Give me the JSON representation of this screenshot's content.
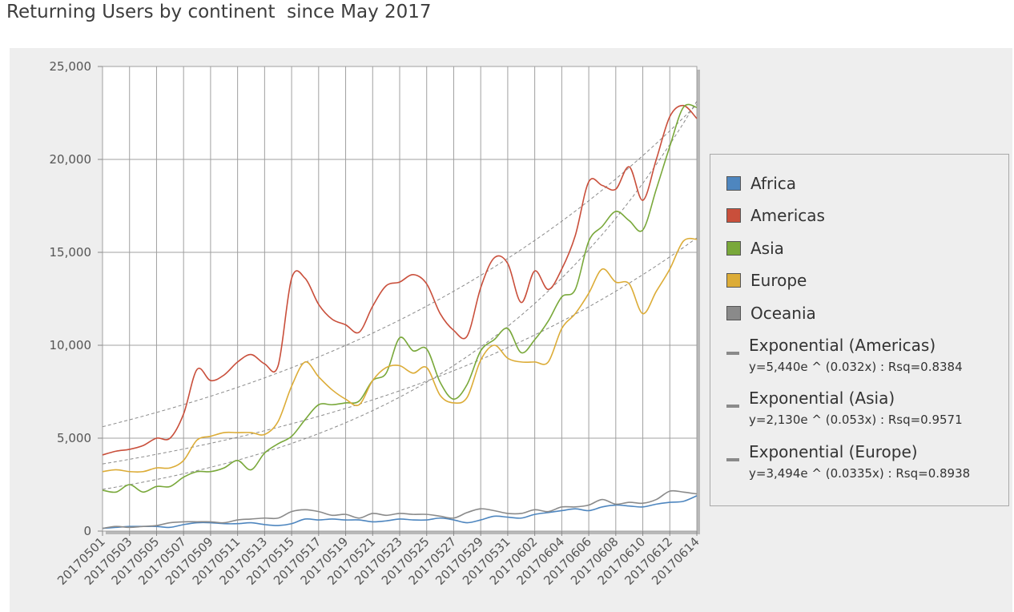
{
  "page": {
    "title": "Returning Users by continent  since May 2017"
  },
  "chart_data": {
    "type": "line",
    "title": "Returning Users by continent  since May 2017",
    "xlabel": "",
    "ylabel": "",
    "ylim": [
      0,
      25000
    ],
    "yticks": [
      0,
      5000,
      10000,
      15000,
      20000,
      25000
    ],
    "ytick_labels": [
      "0",
      "5,000",
      "10,000",
      "15,000",
      "20,000",
      "25,000"
    ],
    "grid": true,
    "legend_position": "right",
    "x": [
      "20170501",
      "20170502",
      "20170503",
      "20170504",
      "20170505",
      "20170506",
      "20170507",
      "20170508",
      "20170509",
      "20170510",
      "20170511",
      "20170512",
      "20170513",
      "20170514",
      "20170515",
      "20170516",
      "20170517",
      "20170518",
      "20170519",
      "20170520",
      "20170521",
      "20170522",
      "20170523",
      "20170524",
      "20170525",
      "20170526",
      "20170527",
      "20170528",
      "20170529",
      "20170530",
      "20170531",
      "20170601",
      "20170602",
      "20170603",
      "20170604",
      "20170605",
      "20170606",
      "20170607",
      "20170608",
      "20170609",
      "20170610",
      "20170611",
      "20170612",
      "20170613",
      "20170614"
    ],
    "xtick_labels": [
      "20170501",
      "20170503",
      "20170505",
      "20170507",
      "20170509",
      "20170511",
      "20170513",
      "20170515",
      "20170517",
      "20170519",
      "20170521",
      "20170523",
      "20170525",
      "20170527",
      "20170529",
      "20170531",
      "20170602",
      "20170604",
      "20170606",
      "20170608",
      "20170610",
      "20170612",
      "20170614"
    ],
    "series": [
      {
        "name": "Africa",
        "color": "#4e86bf",
        "values": [
          150,
          200,
          250,
          250,
          250,
          200,
          350,
          450,
          450,
          400,
          400,
          450,
          350,
          300,
          400,
          650,
          600,
          650,
          600,
          600,
          500,
          550,
          650,
          600,
          600,
          700,
          600,
          450,
          600,
          800,
          750,
          700,
          900,
          1000,
          1100,
          1200,
          1100,
          1300,
          1400,
          1350,
          1300,
          1450,
          1550,
          1600,
          1900
        ]
      },
      {
        "name": "Americas",
        "color": "#c94f3b",
        "values": [
          4100,
          4300,
          4400,
          4600,
          5000,
          5000,
          6300,
          8700,
          8100,
          8400,
          9100,
          9500,
          9000,
          8900,
          13600,
          13600,
          12200,
          11400,
          11100,
          10700,
          12100,
          13200,
          13400,
          13800,
          13300,
          11700,
          10800,
          10500,
          13100,
          14700,
          14400,
          12300,
          14000,
          13000,
          14100,
          15900,
          18800,
          18600,
          18400,
          19600,
          17800,
          20000,
          22300,
          22900,
          22200
        ]
      },
      {
        "name": "Asia",
        "color": "#79a83a",
        "values": [
          2200,
          2100,
          2500,
          2100,
          2400,
          2400,
          2900,
          3200,
          3200,
          3400,
          3800,
          3300,
          4200,
          4700,
          5100,
          6000,
          6800,
          6800,
          6900,
          7000,
          8100,
          8500,
          10400,
          9700,
          9800,
          8000,
          7100,
          7900,
          9700,
          10300,
          10900,
          9600,
          10300,
          11300,
          12600,
          13000,
          15600,
          16400,
          17200,
          16700,
          16200,
          18400,
          20700,
          22800,
          22800
        ]
      },
      {
        "name": "Europe",
        "color": "#dcac37",
        "values": [
          3200,
          3300,
          3200,
          3200,
          3400,
          3400,
          3800,
          4900,
          5100,
          5300,
          5300,
          5300,
          5200,
          5900,
          7800,
          9100,
          8300,
          7600,
          7100,
          6800,
          8100,
          8800,
          8900,
          8500,
          8800,
          7300,
          6900,
          7200,
          9200,
          10000,
          9300,
          9100,
          9100,
          9100,
          10900,
          11700,
          12800,
          14100,
          13400,
          13300,
          11700,
          12900,
          14100,
          15600,
          15700
        ]
      },
      {
        "name": "Oceania",
        "color": "#8a8a8a",
        "values": [
          150,
          250,
          200,
          250,
          300,
          450,
          500,
          500,
          500,
          450,
          600,
          650,
          700,
          700,
          1050,
          1150,
          1050,
          850,
          900,
          700,
          950,
          850,
          950,
          900,
          900,
          800,
          700,
          1000,
          1200,
          1100,
          950,
          950,
          1150,
          1050,
          1300,
          1300,
          1400,
          1700,
          1450,
          1550,
          1500,
          1700,
          2150,
          2100,
          2000
        ]
      }
    ],
    "trendlines": [
      {
        "name": "Exponential (Americas)",
        "equation": "y=5,440e ^ (0.032x) : Rsq=0.8384",
        "a": 5440,
        "b": 0.032,
        "color": "#8a8a8a"
      },
      {
        "name": "Exponential (Asia)",
        "equation": "y=2,130e ^ (0.053x) : Rsq=0.9571",
        "a": 2130,
        "b": 0.053,
        "color": "#8a8a8a"
      },
      {
        "name": "Exponential (Europe)",
        "equation": "y=3,494e ^ (0.0335x) : Rsq=0.8938",
        "a": 3494,
        "b": 0.0335,
        "color": "#8a8a8a"
      }
    ]
  }
}
